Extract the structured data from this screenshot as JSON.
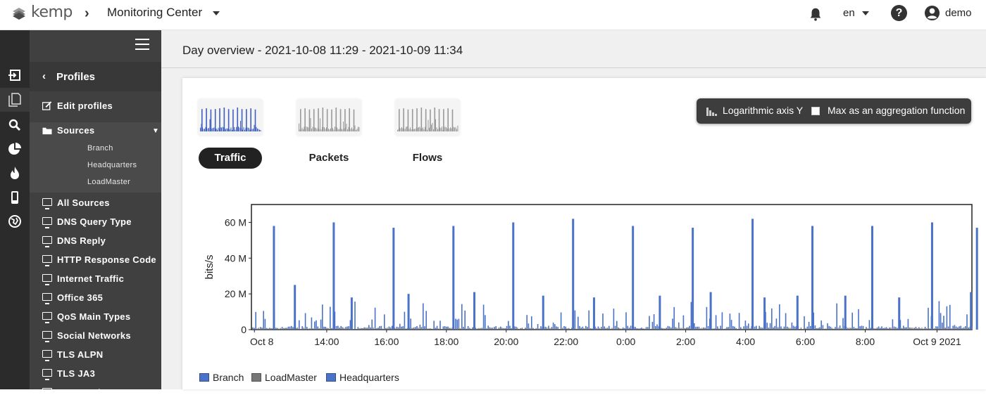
{
  "header": {
    "logo_text": "kemp",
    "app_title": "Monitoring Center",
    "language": "en",
    "user": "demo"
  },
  "sidebar": {
    "section_title": "Profiles",
    "edit_profiles": "Edit profiles",
    "sources_label": "Sources",
    "sources": [
      "Branch",
      "Headquarters",
      "LoadMaster"
    ],
    "items": [
      "All Sources",
      "DNS Query Type",
      "DNS Reply",
      "HTTP Response Code",
      "Internet Traffic",
      "Office 365",
      "QoS Main Types",
      "Social Networks",
      "TLS ALPN",
      "TLS JA3",
      "TLS Version"
    ]
  },
  "main": {
    "title": "Day overview - 2021-10-08 11:29 - 2021-10-09 11:34",
    "tabs": [
      "Traffic",
      "Packets",
      "Flows"
    ],
    "active_tab": "Traffic",
    "options": {
      "log_axis": "Logarithmic axis Y",
      "max_agg": "Max as an aggregation function"
    }
  },
  "colors": {
    "branch": "#4a72c9",
    "loadmaster": "#777777",
    "headquarters": "#4a72c9",
    "sidebar": "#404040",
    "iconbar": "#2b2b2b"
  },
  "chart_data": {
    "type": "bar",
    "ylabel": "bits/s",
    "xlabel": "",
    "y_ticks": [
      "0",
      "20 M",
      "40 M",
      "60 M"
    ],
    "x_ticks": [
      "Oct 8",
      "14:00",
      "16:00",
      "18:00",
      "20:00",
      "22:00",
      "0:00",
      "2:00",
      "4:00",
      "6:00",
      "8:00",
      "Oct 9 2021"
    ],
    "ylim": [
      0,
      70000000
    ],
    "x_range": [
      "2021-10-08 11:29",
      "2021-10-09 11:34"
    ],
    "series": [
      {
        "name": "Branch",
        "color": "#4a72c9"
      },
      {
        "name": "LoadMaster",
        "color": "#777777"
      },
      {
        "name": "Headquarters",
        "color": "#4a72c9"
      }
    ],
    "spikes_hours": [
      12.2,
      14.2,
      16.2,
      18.2,
      20.2,
      22.2,
      24.2,
      26.2,
      28.2,
      30.2,
      32.2,
      34.2,
      35.7
    ],
    "spikes_values": [
      58,
      60,
      57,
      58,
      60,
      62,
      58,
      57,
      62,
      58,
      58,
      60,
      57
    ],
    "secondary_hours": [
      12.9,
      14.8,
      16.7,
      18.9,
      21.2,
      22.9,
      25.1,
      26.8,
      28.6,
      29.7,
      31.3,
      33.1,
      35.5
    ],
    "secondary_values": [
      25,
      18,
      20,
      21,
      19,
      18,
      19,
      21,
      18,
      19,
      19,
      18,
      21
    ]
  }
}
